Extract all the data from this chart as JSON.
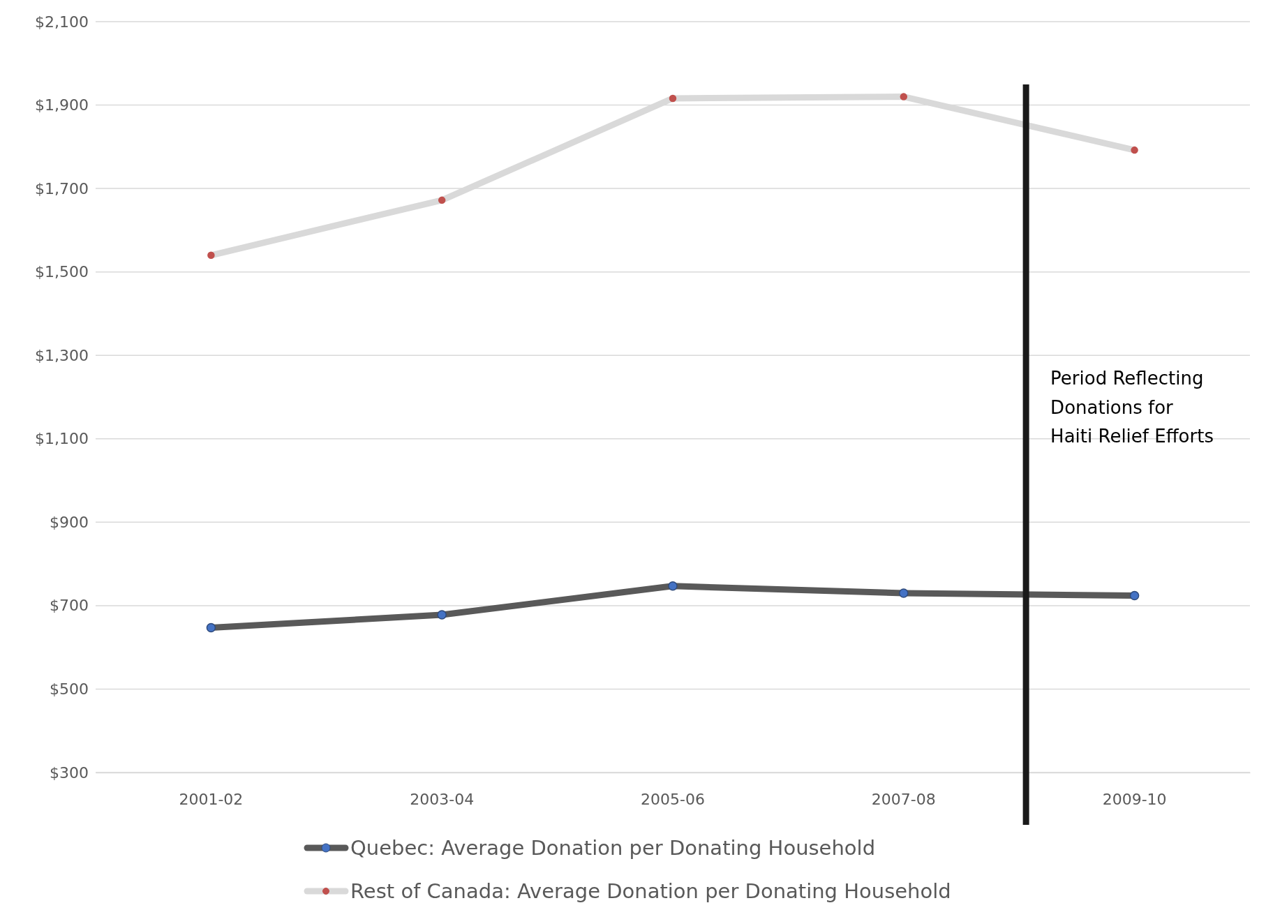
{
  "chart_data": {
    "type": "line",
    "categories": [
      "2001-02",
      "2003-04",
      "2005-06",
      "2007-08",
      "2009-10"
    ],
    "series": [
      {
        "name": "Quebec: Average Donation per Donating Household",
        "color": "#595959",
        "values": [
          647,
          678,
          747,
          730,
          724
        ]
      },
      {
        "name": "Rest of Canada: Average Donation per Donating Household",
        "color": "#d9d9d9",
        "values": [
          1540,
          1672,
          1916,
          1920,
          1792
        ]
      }
    ],
    "ylim": [
      300,
      2100
    ],
    "yticks": [
      {
        "value": 300,
        "label": "$300"
      },
      {
        "value": 500,
        "label": "$500"
      },
      {
        "value": 700,
        "label": "$700"
      },
      {
        "value": 900,
        "label": "$900"
      },
      {
        "value": 1100,
        "label": "$1,100"
      },
      {
        "value": 1300,
        "label": "$1,300"
      },
      {
        "value": 1500,
        "label": "$1,500"
      },
      {
        "value": 1700,
        "label": "$1,700"
      },
      {
        "value": 1900,
        "label": "$1,900"
      },
      {
        "value": 2100,
        "label": "$2,100"
      }
    ],
    "grid": "y",
    "legend": "bottom",
    "marker": "circle",
    "line_style": "solid",
    "ref_lines": [
      {
        "axis": "x",
        "value": "2009-10",
        "label": "Period Reflecting Donations for Haiti Relief Efforts",
        "color": "#1a1a1a"
      }
    ]
  }
}
